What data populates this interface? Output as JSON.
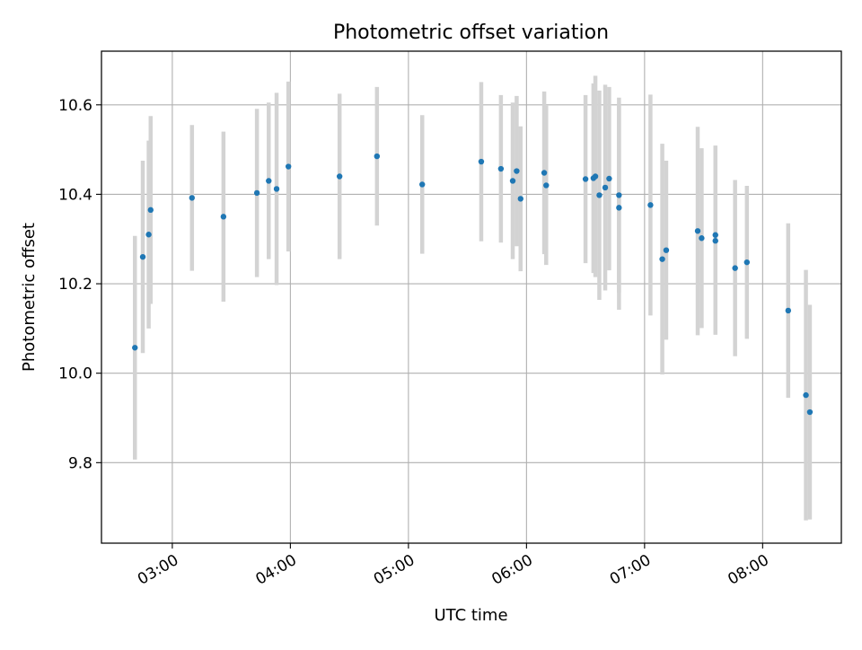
{
  "chart_data": {
    "type": "scatter",
    "title": "Photometric offset variation",
    "xlabel": "UTC time",
    "ylabel": "Photometric offset",
    "x_ticks": [
      "03:00",
      "04:00",
      "05:00",
      "06:00",
      "07:00",
      "08:00"
    ],
    "y_ticks": [
      "9.8",
      "10.0",
      "10.2",
      "10.4",
      "10.6"
    ],
    "xlim": [
      "02:24",
      "08:40"
    ],
    "ylim": [
      9.62,
      10.72
    ],
    "grid": true,
    "colors": {
      "points": "#1f77b4",
      "errorbars": "#d3d3d3",
      "grid": "#b0b0b0"
    },
    "points": [
      {
        "t": "02:41",
        "y": 10.057,
        "err": 0.25
      },
      {
        "t": "02:45",
        "y": 10.26,
        "err": 0.215
      },
      {
        "t": "02:48",
        "y": 10.31,
        "err": 0.21
      },
      {
        "t": "02:49",
        "y": 10.365,
        "err": 0.21
      },
      {
        "t": "03:10",
        "y": 10.392,
        "err": 0.163
      },
      {
        "t": "03:26",
        "y": 10.35,
        "err": 0.19
      },
      {
        "t": "03:43",
        "y": 10.403,
        "err": 0.188
      },
      {
        "t": "03:49",
        "y": 10.43,
        "err": 0.175
      },
      {
        "t": "03:53",
        "y": 10.412,
        "err": 0.215
      },
      {
        "t": "03:59",
        "y": 10.462,
        "err": 0.19
      },
      {
        "t": "04:25",
        "y": 10.44,
        "err": 0.185
      },
      {
        "t": "04:44",
        "y": 10.485,
        "err": 0.155
      },
      {
        "t": "05:07",
        "y": 10.422,
        "err": 0.155
      },
      {
        "t": "05:37",
        "y": 10.473,
        "err": 0.178
      },
      {
        "t": "05:47",
        "y": 10.457,
        "err": 0.165
      },
      {
        "t": "05:53",
        "y": 10.43,
        "err": 0.175
      },
      {
        "t": "05:55",
        "y": 10.452,
        "err": 0.168
      },
      {
        "t": "05:57",
        "y": 10.39,
        "err": 0.162
      },
      {
        "t": "06:09",
        "y": 10.448,
        "err": 0.182
      },
      {
        "t": "06:10",
        "y": 10.42,
        "err": 0.178
      },
      {
        "t": "06:30",
        "y": 10.434,
        "err": 0.188
      },
      {
        "t": "06:34",
        "y": 10.436,
        "err": 0.212
      },
      {
        "t": "06:35",
        "y": 10.44,
        "err": 0.225
      },
      {
        "t": "06:37",
        "y": 10.398,
        "err": 0.234
      },
      {
        "t": "06:40",
        "y": 10.415,
        "err": 0.23
      },
      {
        "t": "06:42",
        "y": 10.435,
        "err": 0.205
      },
      {
        "t": "06:47",
        "y": 10.398,
        "err": 0.218
      },
      {
        "t": "06:47",
        "y": 10.37,
        "err": 0.228
      },
      {
        "t": "07:03",
        "y": 10.376,
        "err": 0.247
      },
      {
        "t": "07:09",
        "y": 10.255,
        "err": 0.258
      },
      {
        "t": "07:11",
        "y": 10.275,
        "err": 0.2
      },
      {
        "t": "07:27",
        "y": 10.318,
        "err": 0.233
      },
      {
        "t": "07:29",
        "y": 10.302,
        "err": 0.201
      },
      {
        "t": "07:36",
        "y": 10.309,
        "err": 0.2
      },
      {
        "t": "07:36",
        "y": 10.296,
        "err": 0.21
      },
      {
        "t": "07:46",
        "y": 10.235,
        "err": 0.197
      },
      {
        "t": "07:52",
        "y": 10.248,
        "err": 0.171
      },
      {
        "t": "08:13",
        "y": 10.14,
        "err": 0.195
      },
      {
        "t": "08:22",
        "y": 9.951,
        "err": 0.28
      },
      {
        "t": "08:24",
        "y": 9.913,
        "err": 0.24
      }
    ]
  }
}
